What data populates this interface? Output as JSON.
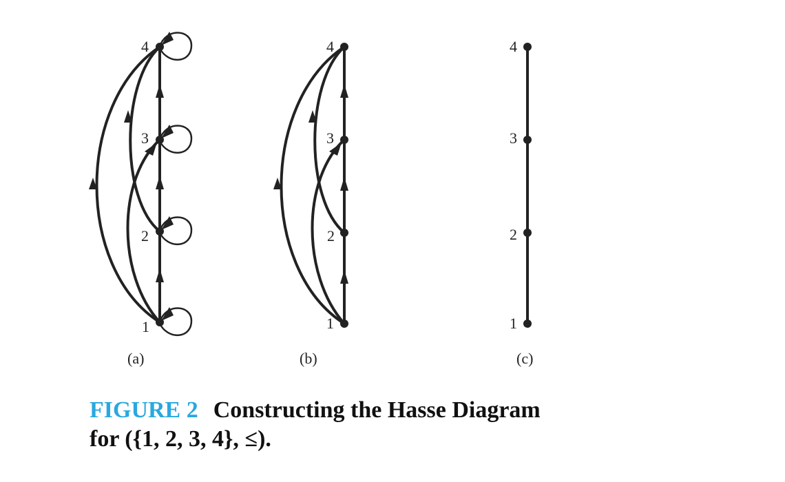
{
  "panels": [
    {
      "label": "(a)",
      "nodes": [
        "1",
        "2",
        "3",
        "4"
      ]
    },
    {
      "label": "(b)",
      "nodes": [
        "1",
        "2",
        "3",
        "4"
      ]
    },
    {
      "label": "(c)",
      "nodes": [
        "1",
        "2",
        "3",
        "4"
      ]
    }
  ],
  "caption": {
    "number": "FIGURE 2",
    "title": "Constructing the Hasse Diagram",
    "line2": "for ({1, 2, 3, 4}, ≤)."
  },
  "colors": {
    "ink": "#222222",
    "caption_accent": "#29a8df"
  }
}
